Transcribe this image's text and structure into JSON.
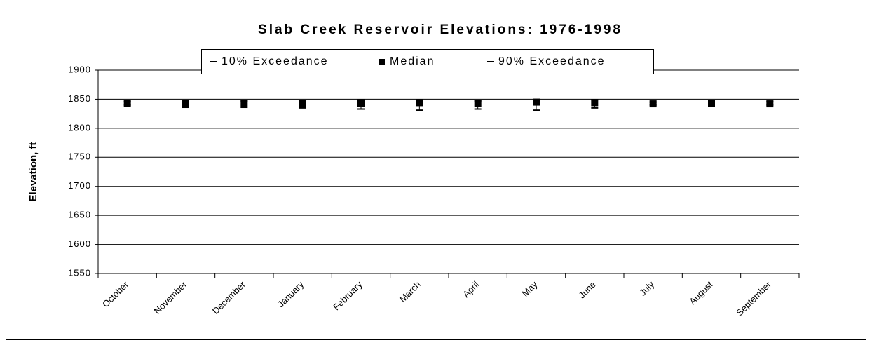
{
  "chart_data": {
    "type": "errorbar",
    "title": "Slab Creek Reservoir Elevations: 1976-1998",
    "y_label": "Elevation, ft",
    "categories": [
      "October",
      "November",
      "December",
      "January",
      "February",
      "March",
      "April",
      "May",
      "June",
      "July",
      "August",
      "September"
    ],
    "series": [
      {
        "name": "10% Exceedance",
        "color": "#000000",
        "values": [
          1846,
          1847,
          1847,
          1847,
          1849,
          1848,
          1847,
          1849,
          1849,
          1845,
          1845,
          1846
        ]
      },
      {
        "name": "Median",
        "color": "#000000",
        "values": [
          1843,
          1843,
          1842,
          1843,
          1843,
          1844,
          1843,
          1845,
          1844,
          1842,
          1843,
          1842
        ]
      },
      {
        "name": "90% Exceedance",
        "color": "#000000",
        "values": [
          1840,
          1836,
          1836,
          1835,
          1833,
          1831,
          1833,
          1831,
          1835,
          1840,
          1841,
          1840
        ]
      }
    ],
    "ylim": [
      1550,
      1900
    ],
    "yticks": [
      1550,
      1600,
      1650,
      1700,
      1750,
      1800,
      1850,
      1900
    ],
    "grid": true,
    "legend": "top"
  }
}
